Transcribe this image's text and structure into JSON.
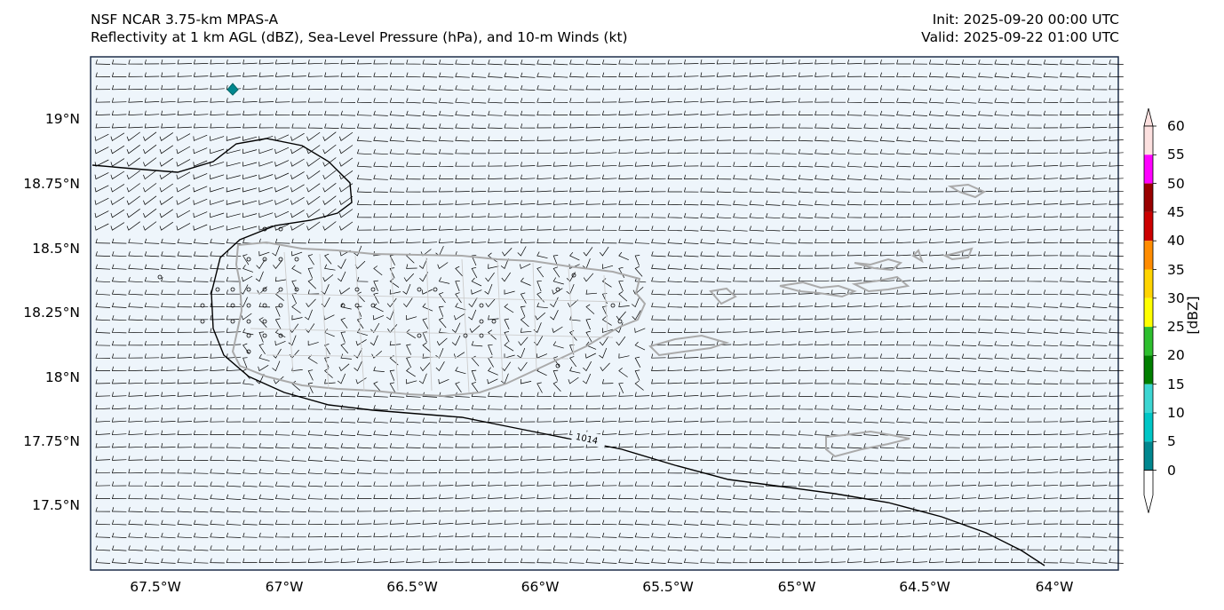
{
  "header": {
    "model_title": "NSF NCAR 3.75-km MPAS-A",
    "fields_title": "Reflectivity at 1 km AGL (dBZ), Sea-Level Pressure (hPa), and 10-m Winds (kt)",
    "init_time": "Init: 2025-09-20 00:00 UTC",
    "valid_time": "Valid: 2025-09-22 01:00 UTC"
  },
  "map": {
    "lat_labels": [
      "19°N",
      "18.75°N",
      "18.5°N",
      "18.25°N",
      "18°N",
      "17.75°N",
      "17.5°N"
    ],
    "lon_labels": [
      "67.5°W",
      "67°W",
      "66.5°W",
      "66°W",
      "65.5°W",
      "65°W",
      "64.5°W",
      "64°W"
    ],
    "isobar_label": "1014",
    "ocean_color": "#eef5fb",
    "coast_color": "#aaaaaa",
    "isobar_color": "#000000"
  },
  "colorbar": {
    "label": "[dBZ]",
    "ticks": [
      "0",
      "5",
      "10",
      "15",
      "20",
      "25",
      "30",
      "35",
      "40",
      "45",
      "50",
      "55",
      "60"
    ],
    "colors": [
      "#ffffff",
      "#00878f",
      "#00c6c6",
      "#3cd6d2",
      "#007f00",
      "#2ebf2e",
      "#ffff00",
      "#ffd400",
      "#ff8c00",
      "#cc0000",
      "#990000",
      "#ff00ff",
      "#fce0df"
    ]
  }
}
